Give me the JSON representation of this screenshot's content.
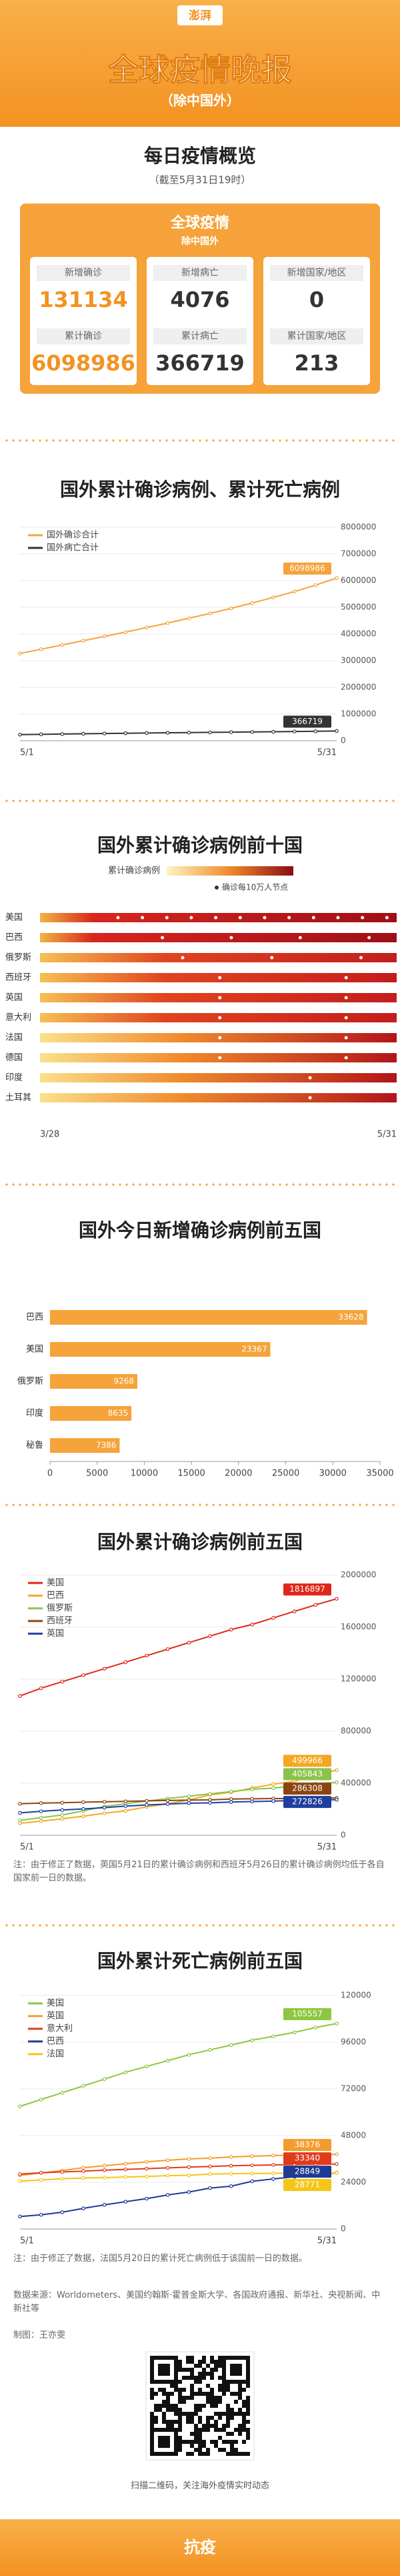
{
  "header": {
    "logo": "澎湃",
    "title": "全球疫情晚报",
    "subtitle": "（除中国外）"
  },
  "overview": {
    "title": "每日疫情概览",
    "subtitle": "（截至5月31日19时）",
    "box_title": "全球疫情",
    "box_subtitle": "除中国外",
    "cells": [
      [
        {
          "label": "新增确诊",
          "value": 131134
        },
        {
          "label": "累计确诊",
          "value": 6098986
        }
      ],
      [
        {
          "label": "新增病亡",
          "value": 4076
        },
        {
          "label": "累计病亡",
          "value": 366719
        }
      ],
      [
        {
          "label": "新增国家/地区",
          "value": 0
        },
        {
          "label": "累计国家/地区",
          "value": 213
        }
      ]
    ]
  },
  "chart_data": [
    {
      "type": "line",
      "title": "国外累计确诊病例、累计死亡病例",
      "categories": [
        "5/1",
        null,
        null,
        null,
        null,
        null,
        null,
        null,
        null,
        null,
        null,
        null,
        null,
        null,
        null,
        "5/31"
      ],
      "series": [
        {
          "name": "国外确诊合计",
          "color": "#f5a33a",
          "values": [
            3270000,
            3430000,
            3590000,
            3750000,
            3910000,
            4070000,
            4240000,
            4410000,
            4590000,
            4770000,
            4960000,
            5160000,
            5370000,
            5590000,
            5830000,
            6098986
          ]
        },
        {
          "name": "国外病亡合计",
          "color": "#333333",
          "values": [
            230000,
            241000,
            252000,
            263000,
            273000,
            282000,
            291000,
            299000,
            307000,
            315000,
            323000,
            331000,
            339000,
            347000,
            356000,
            366719
          ]
        }
      ],
      "ylim": [
        0,
        8000000
      ],
      "yticks": [
        0,
        1000000,
        2000000,
        3000000,
        4000000,
        5000000,
        6000000,
        7000000,
        8000000
      ],
      "grid": true
    },
    {
      "type": "heatmap",
      "title": "国外累计确诊病例前十国",
      "legend_title": "累计确诊病例",
      "legend_note": "确诊每10万人节点",
      "categories": [
        "美国",
        "巴西",
        "俄罗斯",
        "西班牙",
        "英国",
        "意大利",
        "法国",
        "德国",
        "印度",
        "土耳其"
      ],
      "x": [
        "3/28",
        "5/31"
      ]
    },
    {
      "type": "bar",
      "title": "国外今日新增确诊病例前五国",
      "categories": [
        "巴西",
        "美国",
        "俄罗斯",
        "印度",
        "秘鲁"
      ],
      "values": [
        33628,
        23367,
        9268,
        8635,
        7386
      ],
      "color": "#f5a33a",
      "xlim": [
        0,
        35000
      ],
      "xticks": [
        0,
        5000,
        10000,
        15000,
        20000,
        25000,
        30000,
        35000
      ]
    },
    {
      "type": "line",
      "title": "国外累计确诊病例前五国",
      "categories": [
        "5/1",
        null,
        null,
        null,
        null,
        null,
        null,
        null,
        null,
        null,
        null,
        null,
        null,
        null,
        null,
        "5/31"
      ],
      "series": [
        {
          "name": "美国",
          "color": "#e0261b",
          "values": [
            1070000,
            1130000,
            1180000,
            1230000,
            1280000,
            1330000,
            1380000,
            1430000,
            1480000,
            1530000,
            1580000,
            1620000,
            1670000,
            1720000,
            1770000,
            1816897
          ]
        },
        {
          "name": "巴西",
          "color": "#f5a623",
          "values": [
            92000,
            108000,
            126000,
            146000,
            169000,
            188000,
            218000,
            241000,
            271000,
            311000,
            330000,
            363000,
            392000,
            415000,
            465000,
            499966
          ]
        },
        {
          "name": "俄罗斯",
          "color": "#8bc34a",
          "values": [
            114000,
            135000,
            156000,
            187000,
            221000,
            242000,
            262000,
            282000,
            300000,
            318000,
            335000,
            353000,
            362000,
            379000,
            396000,
            405843
          ]
        },
        {
          "name": "西班牙",
          "color": "#8b4513",
          "values": [
            242000,
            247000,
            250000,
            254000,
            257000,
            260000,
            264000,
            267000,
            270000,
            272000,
            278000,
            280000,
            282000,
            283000,
            285000,
            286308
          ]
        },
        {
          "name": "英国",
          "color": "#1f3f9e",
          "values": [
            172000,
            184000,
            194000,
            202000,
            212000,
            224000,
            233000,
            240000,
            246000,
            249000,
            255000,
            259000,
            262000,
            267000,
            270000,
            272826
          ]
        }
      ],
      "ylim": [
        0,
        2000000
      ],
      "yticks": [
        0,
        400000,
        800000,
        1200000,
        1600000,
        2000000
      ],
      "grid": true,
      "note": "注：由于修正了数据，英国5月21日的累计确诊病例和西班牙5月26日的累计确诊病例均低于各自国家前一日的数据。"
    },
    {
      "type": "line",
      "title": "国外累计死亡病例前五国",
      "categories": [
        "5/1",
        null,
        null,
        null,
        null,
        null,
        null,
        null,
        null,
        null,
        null,
        null,
        null,
        null,
        null,
        "5/31"
      ],
      "series": [
        {
          "name": "美国",
          "color": "#8dc63f",
          "values": [
            63000,
            66500,
            70000,
            73500,
            77000,
            80500,
            83500,
            86500,
            89500,
            92000,
            94500,
            97000,
            99000,
            101000,
            103500,
            105557
          ]
        },
        {
          "name": "英国",
          "color": "#f39c2b",
          "values": [
            27500,
            28800,
            30000,
            31500,
            32500,
            33500,
            34500,
            35300,
            36000,
            36400,
            37000,
            37400,
            37700,
            38000,
            38200,
            38376
          ]
        },
        {
          "name": "意大利",
          "color": "#e03c1b",
          "values": [
            28200,
            28900,
            29300,
            29700,
            30200,
            30600,
            31000,
            31400,
            31800,
            32100,
            32500,
            32700,
            32900,
            33100,
            33200,
            33340
          ]
        },
        {
          "name": "巴西",
          "color": "#1f3a93",
          "values": [
            6400,
            7300,
            8600,
            10600,
            12400,
            14000,
            15600,
            17500,
            19000,
            21000,
            22000,
            24500,
            25700,
            26800,
            27900,
            28849
          ]
        },
        {
          "name": "法国",
          "color": "#f5c518",
          "values": [
            24600,
            25200,
            25800,
            26200,
            26400,
            26700,
            27000,
            27400,
            27600,
            28200,
            28400,
            28500,
            28600,
            28700,
            28700,
            28771
          ]
        }
      ],
      "ylim": [
        0,
        120000
      ],
      "yticks": [
        0,
        24000,
        48000,
        72000,
        96000,
        120000
      ],
      "grid": true,
      "note": "注：由于修正了数据，法国5月20日的累计死亡病例低于该国前一日的数据。"
    }
  ],
  "sources": "数据来源：Worldometers、美国约翰斯·霍普金斯大学、各国政府通报、新华社、央视新闻、中新社等",
  "credit": "制图：王亦雯",
  "qr_caption": "扫描二维码，关注海外疫情实时动态",
  "footer": "抗疫"
}
